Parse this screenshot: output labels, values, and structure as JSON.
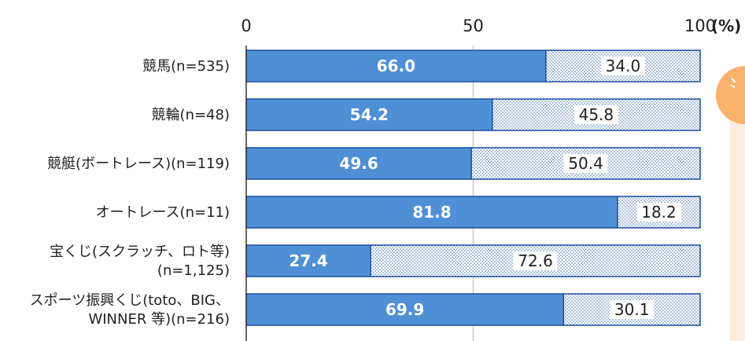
{
  "chart_data": {
    "type": "bar",
    "orientation": "horizontal",
    "stacked": true,
    "percent_scale": true,
    "xlim": [
      0,
      100
    ],
    "x_ticks": [
      "0",
      "50",
      "100"
    ],
    "unit_label": "(%)",
    "grid": true,
    "legend": "none",
    "categories": [
      [
        "競馬(n=535)"
      ],
      [
        "競輪(n=48)"
      ],
      [
        "競艇(ボートレース)(n=119)"
      ],
      [
        "オートレース(n=11)"
      ],
      [
        "宝くじ(スクラッチ、ロト等)",
        "(n=1,125)"
      ],
      [
        "スポーツ振興くじ(toto、BIG、",
        "WINNER 等)(n=216)"
      ]
    ],
    "series": [
      {
        "values": [
          66.0,
          54.2,
          49.6,
          81.8,
          27.4,
          69.9
        ],
        "labels": [
          "66.0",
          "54.2",
          "49.6",
          "81.8",
          "27.4",
          "69.9"
        ],
        "color": "#4f8fd6",
        "pattern": "solid"
      },
      {
        "values": [
          34.0,
          45.8,
          50.4,
          18.2,
          72.6,
          30.1
        ],
        "labels": [
          "34.0",
          "45.8",
          "50.4",
          "18.2",
          "72.6",
          "30.1"
        ],
        "color": "#3d6fb5",
        "pattern": "dotted"
      }
    ]
  },
  "colors": {
    "bar_border": "#1f4fa0",
    "grid": "#c8c8c8",
    "callout": "#f8b26a",
    "callout_bg": "#fdece0"
  }
}
